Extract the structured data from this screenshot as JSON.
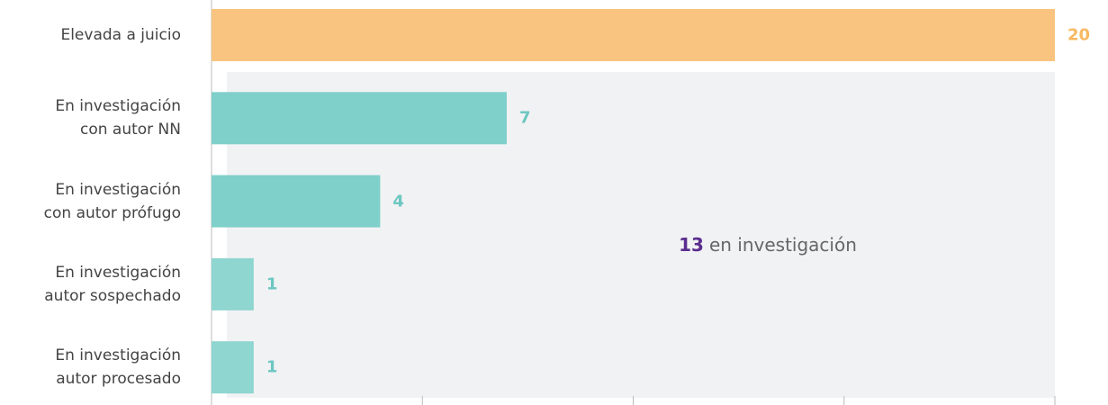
{
  "chart_data": {
    "type": "bar",
    "orientation": "horizontal",
    "categories": [
      "Elevada a juicio",
      "En investigación\ncon autor NN",
      "En investigación\ncon autor prófugo",
      "En investigación\nautor sospechado",
      "En investigación\nautor procesado"
    ],
    "values": [
      20,
      7,
      4,
      1,
      1
    ],
    "colors": [
      "#f9c47f",
      "#7fcfca",
      "#7fcfca",
      "#8fd5d0",
      "#8fd5d0"
    ],
    "label_colors": [
      "#f7b860",
      "#6cc7c1",
      "#6cc7c1",
      "#6cc7c1",
      "#6cc7c1"
    ],
    "xlim": [
      0,
      20
    ],
    "xticks": [
      0,
      5,
      10,
      15,
      20
    ],
    "annotation": {
      "value": 13,
      "text": "en investigación",
      "color": "#5b2d8e"
    }
  }
}
